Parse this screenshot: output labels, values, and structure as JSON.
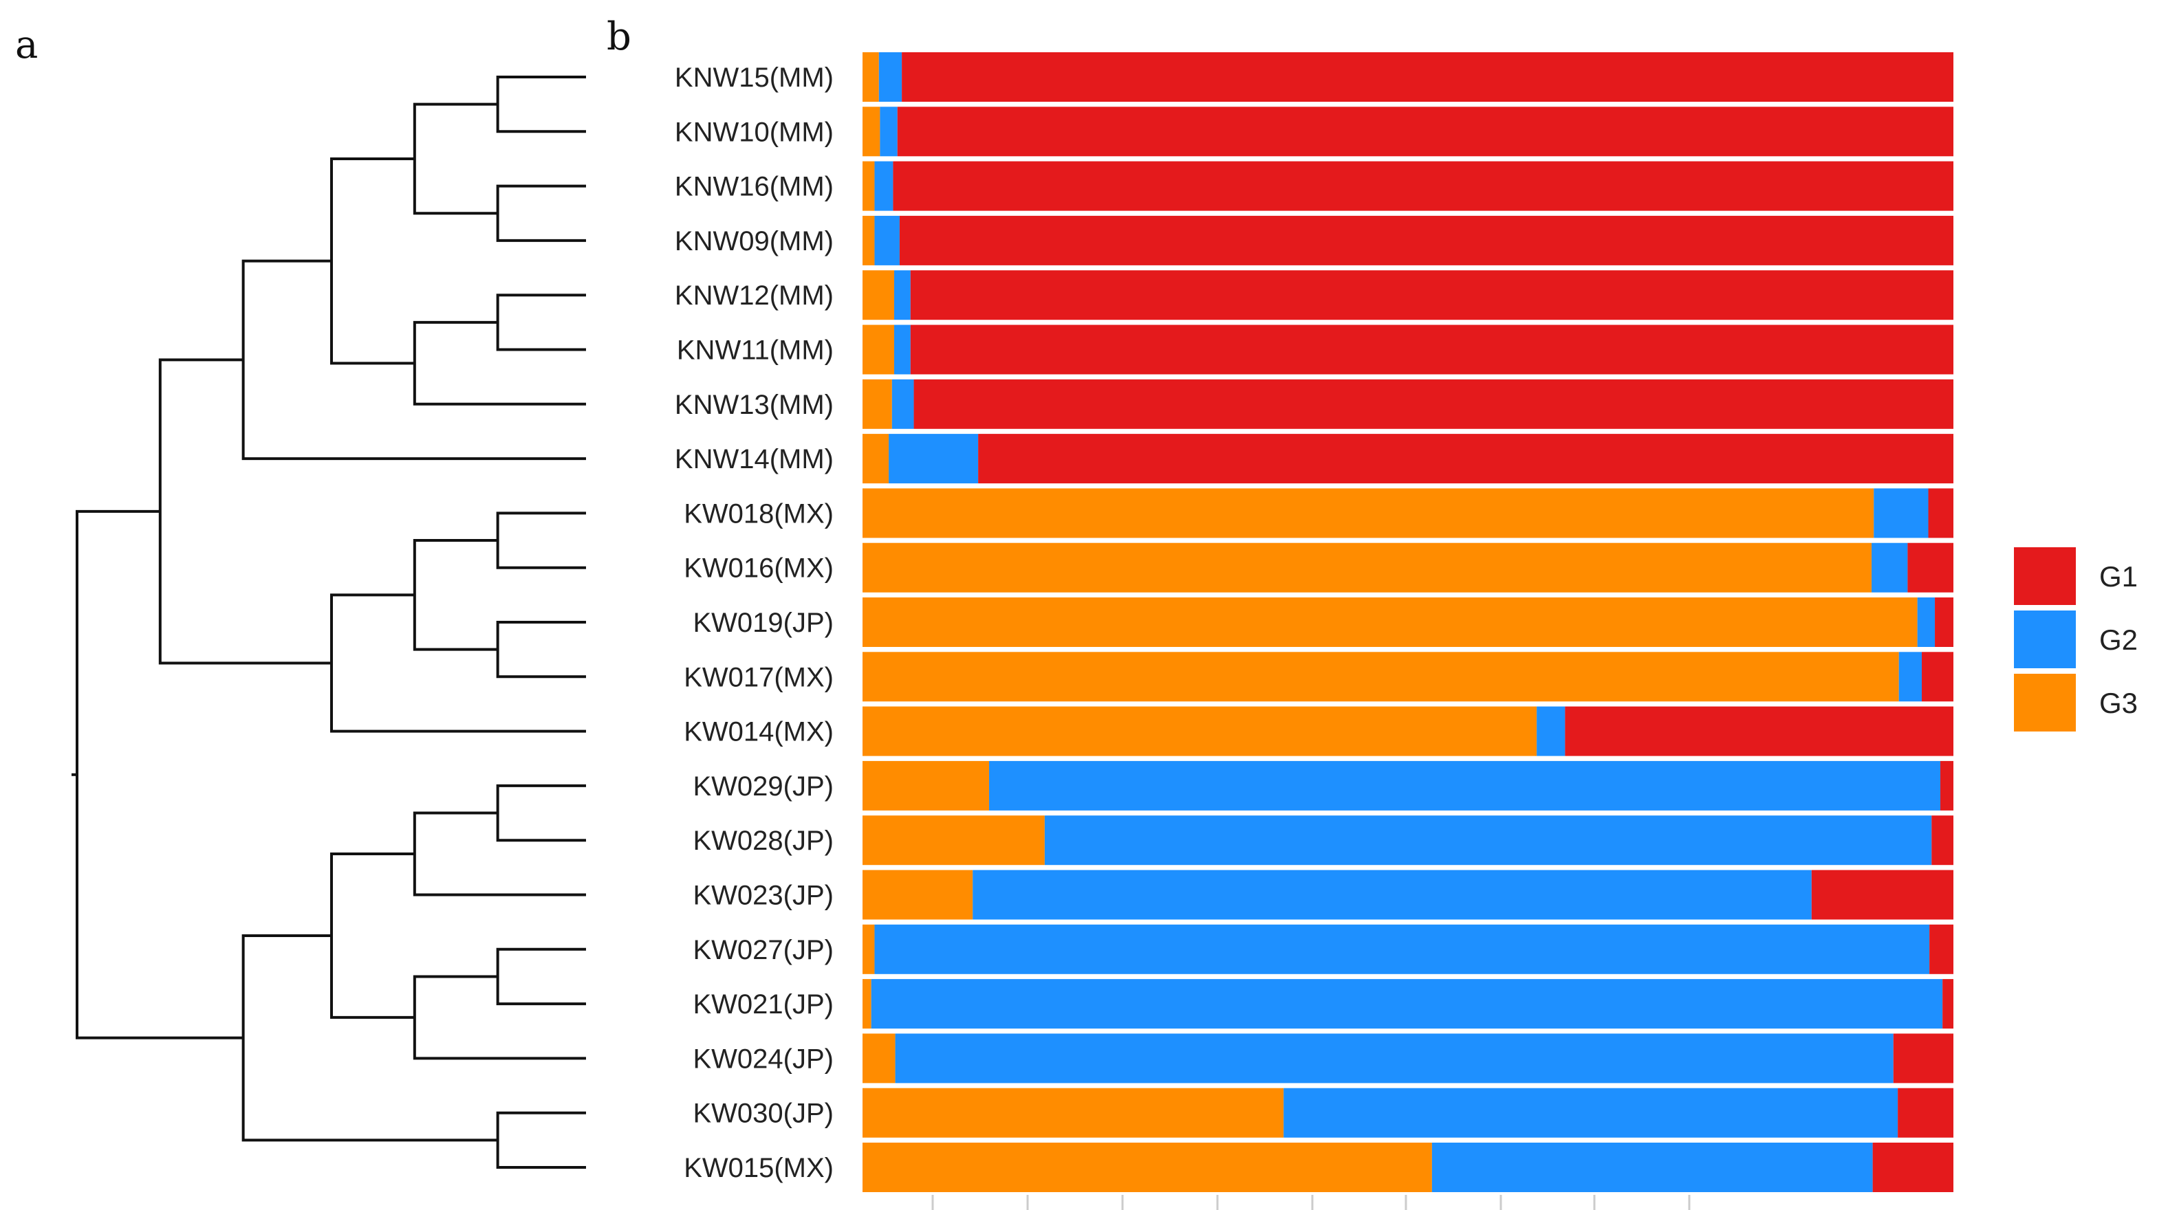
{
  "panel_labels": {
    "a": "a",
    "b": "b"
  },
  "chart_data": {
    "type": "stacked-bar",
    "orientation": "horizontal",
    "title": "",
    "xlabel": "",
    "ylabel": "",
    "xlim": [
      0,
      1
    ],
    "categories": [
      "KNW15(MM)",
      "KNW10(MM)",
      "KNW16(MM)",
      "KNW09(MM)",
      "KNW12(MM)",
      "KNW11(MM)",
      "KNW13(MM)",
      "KNW14(MM)",
      "KW018(MX)",
      "KW016(MX)",
      "KW019(JP)",
      "KW017(MX)",
      "KW014(MX)",
      "KW029(JP)",
      "KW028(JP)",
      "KW023(JP)",
      "KW027(JP)",
      "KW021(JP)",
      "KW024(JP)",
      "KW030(JP)",
      "KW015(MX)"
    ],
    "series": [
      {
        "name": "G3",
        "color": "#FF8C00",
        "values": [
          0.015,
          0.016,
          0.011,
          0.011,
          0.029,
          0.029,
          0.027,
          0.024,
          0.927,
          0.925,
          0.967,
          0.95,
          0.618,
          0.116,
          0.167,
          0.101,
          0.011,
          0.008,
          0.03,
          0.386,
          0.522
        ]
      },
      {
        "name": "G2",
        "color": "#1E90FF",
        "values": [
          0.021,
          0.016,
          0.017,
          0.023,
          0.015,
          0.015,
          0.02,
          0.082,
          0.05,
          0.033,
          0.016,
          0.021,
          0.026,
          0.872,
          0.813,
          0.769,
          0.967,
          0.982,
          0.915,
          0.563,
          0.404
        ]
      },
      {
        "name": "G1",
        "color": "#E41A1C",
        "values": [
          0.964,
          0.968,
          0.972,
          0.966,
          0.956,
          0.956,
          0.953,
          0.894,
          0.023,
          0.042,
          0.017,
          0.029,
          0.356,
          0.012,
          0.02,
          0.13,
          0.022,
          0.01,
          0.055,
          0.051,
          0.074
        ]
      }
    ],
    "legend": {
      "position": "right",
      "entries": [
        {
          "label": "G1",
          "color": "#E41A1C"
        },
        {
          "label": "G2",
          "color": "#1E90FF"
        },
        {
          "label": "G3",
          "color": "#FF8C00"
        }
      ]
    },
    "dendrogram": {
      "type": "dendrogram",
      "leaf_order": [
        "KNW15(MM)",
        "KNW10(MM)",
        "KNW16(MM)",
        "KNW09(MM)",
        "KNW12(MM)",
        "KNW11(MM)",
        "KNW13(MM)",
        "KNW14(MM)",
        "KW018(MX)",
        "KW016(MX)",
        "KW019(JP)",
        "KW017(MX)",
        "KW014(MX)",
        "KW029(JP)",
        "KW028(JP)",
        "KW023(JP)",
        "KW027(JP)",
        "KW021(JP)",
        "KW024(JP)",
        "KW030(JP)",
        "KW015(MX)"
      ],
      "merges": [
        {
          "a": "L0",
          "b": "L1",
          "height": 0.17
        },
        {
          "a": "L2",
          "b": "L3",
          "height": 0.17
        },
        {
          "a": "m0",
          "b": "m1",
          "height": 0.33
        },
        {
          "a": "L4",
          "b": "L5",
          "height": 0.17
        },
        {
          "a": "m3",
          "b": "L6",
          "height": 0.33
        },
        {
          "a": "m2",
          "b": "m4",
          "height": 0.49
        },
        {
          "a": "m5",
          "b": "L7",
          "height": 0.66
        },
        {
          "a": "L8",
          "b": "L9",
          "height": 0.17
        },
        {
          "a": "L10",
          "b": "L11",
          "height": 0.17
        },
        {
          "a": "m7",
          "b": "m8",
          "height": 0.33
        },
        {
          "a": "m9",
          "b": "L12",
          "height": 0.49
        },
        {
          "a": "m6",
          "b": "m10",
          "height": 0.82
        },
        {
          "a": "L13",
          "b": "L14",
          "height": 0.17
        },
        {
          "a": "m12",
          "b": "L15",
          "height": 0.33
        },
        {
          "a": "L16",
          "b": "L17",
          "height": 0.17
        },
        {
          "a": "m14",
          "b": "L18",
          "height": 0.33
        },
        {
          "a": "m13",
          "b": "m15",
          "height": 0.49
        },
        {
          "a": "L19",
          "b": "L20",
          "height": 0.17
        },
        {
          "a": "m16",
          "b": "m17",
          "height": 0.66
        },
        {
          "a": "m11",
          "b": "m18",
          "height": 0.98
        }
      ]
    }
  }
}
